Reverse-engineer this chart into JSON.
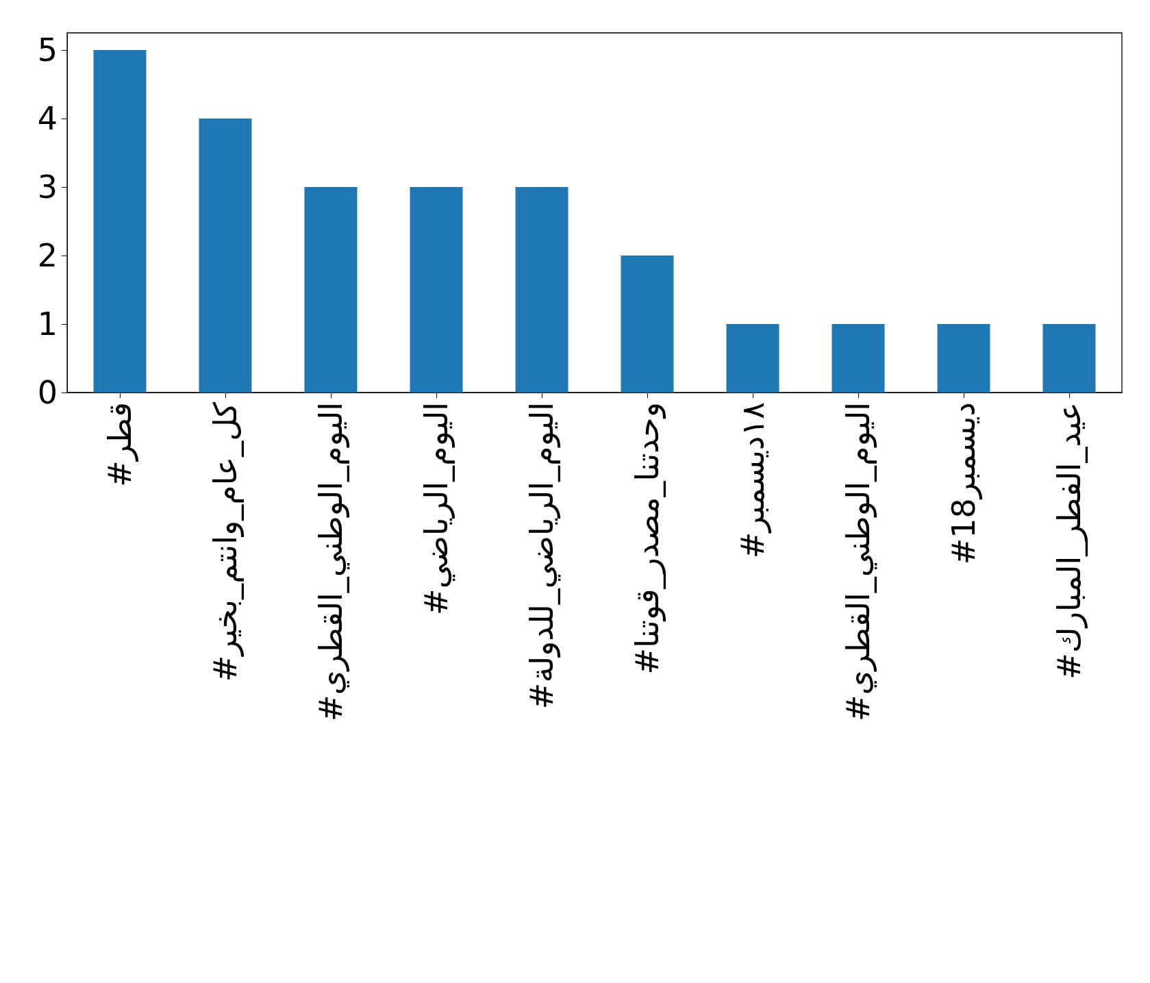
{
  "chart_data": {
    "type": "bar",
    "categories": [
      "#قطر",
      "#كل_عام_وانتم_بخير",
      "#اليوم_الوطني_القطري",
      "#اليوم_الرياضي",
      "#اليوم_الرياضي_للدولة",
      "#وحدتنا_مصدر_قوتنا",
      "#١٨ديسمبر",
      "#اليوم_الوطني_القطري",
      "#18ديسمبر",
      "#عيد_الفطر_المبارك"
    ],
    "values": [
      5,
      4,
      3,
      3,
      3,
      2,
      1,
      1,
      1,
      1
    ],
    "color": "#1f77b4",
    "ylim": [
      0,
      5.25
    ],
    "yticks": [
      0,
      1,
      2,
      3,
      4,
      5
    ],
    "grid": false
  }
}
